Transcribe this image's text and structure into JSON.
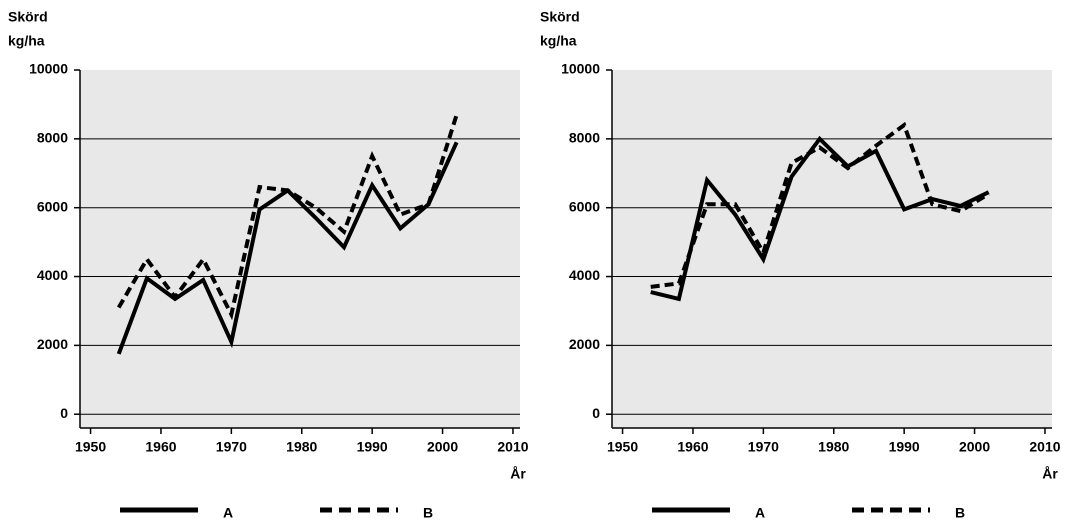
{
  "chart_data": [
    {
      "type": "line",
      "ylabel": [
        "Skörd",
        "kg/ha"
      ],
      "xlabel": "År",
      "x": [
        1954,
        1958,
        1962,
        1966,
        1970,
        1974,
        1978,
        1982,
        1986,
        1990,
        1994,
        1998,
        2002
      ],
      "series": [
        {
          "name": "A",
          "color": "#000000",
          "dash": false,
          "values": [
            1750,
            3950,
            3350,
            3900,
            2100,
            5950,
            6500,
            5700,
            4850,
            6650,
            5400,
            6100,
            7900
          ]
        },
        {
          "name": "B",
          "color": "#000000",
          "dash": true,
          "values": [
            3100,
            4500,
            3400,
            4500,
            2900,
            6600,
            6500,
            6000,
            5300,
            7500,
            5800,
            6100,
            8700
          ]
        }
      ],
      "xlim": [
        1948.5,
        2011
      ],
      "ylim": [
        -400,
        10000
      ],
      "xticks": [
        1950,
        1960,
        1970,
        1980,
        1990,
        2000,
        2010
      ],
      "yticks": [
        0,
        2000,
        4000,
        6000,
        8000,
        10000
      ],
      "grid": true
    },
    {
      "type": "line",
      "ylabel": [
        "Skörd",
        "kg/ha"
      ],
      "xlabel": "År",
      "x": [
        1954,
        1958,
        1962,
        1966,
        1970,
        1974,
        1978,
        1982,
        1986,
        1990,
        1994,
        1998,
        2002
      ],
      "series": [
        {
          "name": "A",
          "color": "#000000",
          "dash": false,
          "values": [
            3550,
            3350,
            6800,
            5800,
            4500,
            6900,
            8000,
            7200,
            7650,
            5950,
            6250,
            6050,
            6450
          ]
        },
        {
          "name": "B",
          "color": "#000000",
          "dash": true,
          "values": [
            3700,
            3800,
            6100,
            6100,
            4700,
            7300,
            7750,
            7150,
            7800,
            8400,
            6100,
            5900,
            6400
          ]
        }
      ],
      "xlim": [
        1948.5,
        2011
      ],
      "ylim": [
        -400,
        10000
      ],
      "xticks": [
        1950,
        1960,
        1970,
        1980,
        1990,
        2000,
        2010
      ],
      "yticks": [
        0,
        2000,
        4000,
        6000,
        8000,
        10000
      ],
      "grid": true
    }
  ]
}
